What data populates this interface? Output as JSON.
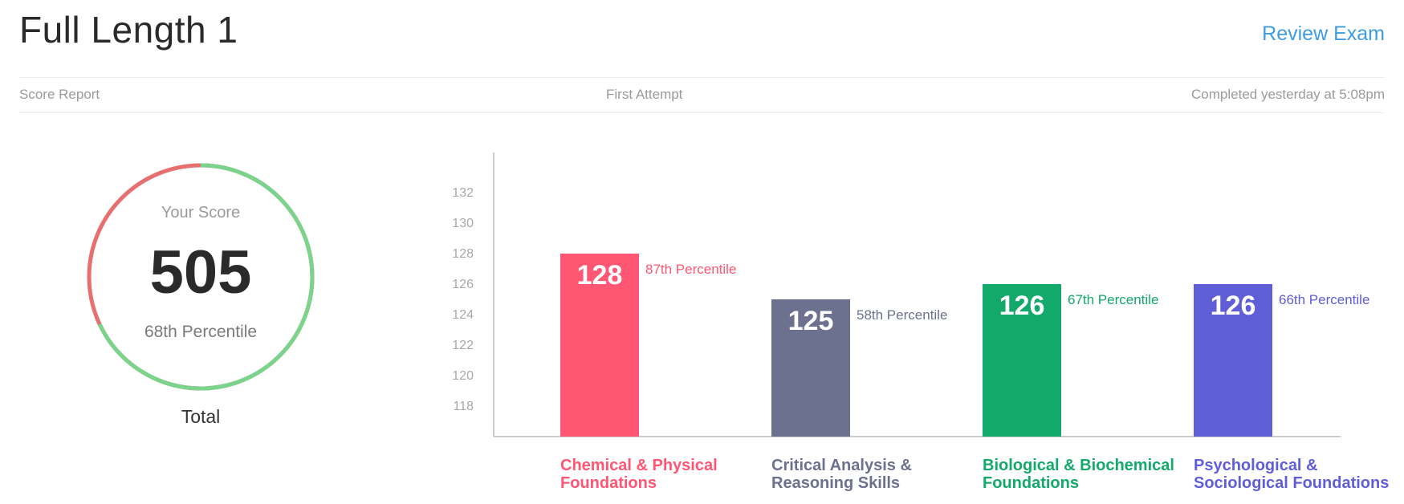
{
  "header": {
    "title": "Full Length 1",
    "review_link": "Review Exam"
  },
  "meta": {
    "left": "Score Report",
    "center": "First Attempt",
    "right": "Completed yesterday at 5:08pm"
  },
  "score": {
    "label": "Your Score",
    "value": "505",
    "percentile": "68th Percentile",
    "caption": "Total",
    "percentile_fraction": 0.68,
    "colors": {
      "filled": "#7ad48c",
      "remaining": "#e5706f"
    }
  },
  "chart_data": {
    "type": "bar",
    "categories": [
      "Chemical & Physical Foundations",
      "Critical Analysis & Reasoning Skills",
      "Biological & Biochemical Foundations",
      "Psychological & Sociological Foundations"
    ],
    "category_lines": [
      [
        "Chemical & Physical",
        "Foundations"
      ],
      [
        "Critical Analysis &",
        "Reasoning Skills"
      ],
      [
        "Biological & Biochemical",
        "Foundations"
      ],
      [
        "Psychological &",
        "Sociological Foundations"
      ]
    ],
    "values": [
      128,
      125,
      126,
      126
    ],
    "percentile_labels": [
      "87th Percentile",
      "58th Percentile",
      "67th Percentile",
      "66th Percentile"
    ],
    "colors": [
      "#fe5673",
      "#6c718f",
      "#13a96b",
      "#5f5ed6"
    ],
    "y_ticks": [
      118,
      120,
      122,
      124,
      126,
      128,
      130,
      132
    ],
    "ylim": [
      116,
      134
    ],
    "grid": false
  }
}
